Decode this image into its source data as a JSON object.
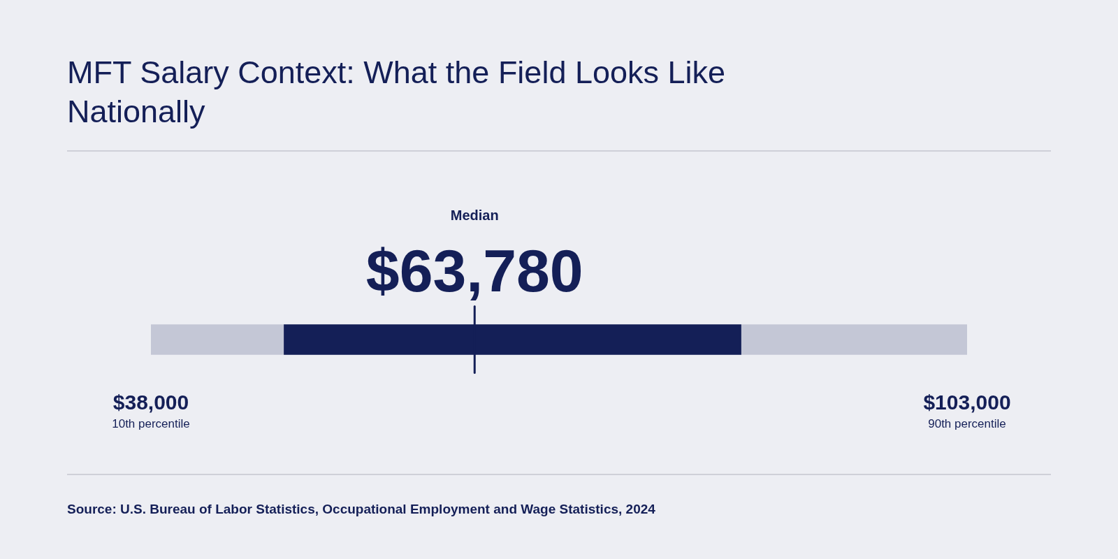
{
  "chart_data": {
    "type": "bar",
    "orientation": "horizontal",
    "title": "MFT Salary Context: What the Field Looks Like Nationally",
    "categories": [
      null
    ],
    "series": [
      {
        "color": "#c4c7d6",
        "values": [
          65000
        ],
        "base": [
          38000
        ]
      },
      {
        "color": "#141f57",
        "values": [
          36400
        ],
        "base": [
          48600
        ]
      }
    ],
    "xlim": [
      38000,
      103000
    ],
    "xticks": [
      {
        "value": 38000,
        "label": "$38,000"
      },
      {
        "value": 103000,
        "label": "$103,000"
      }
    ],
    "ref_lines": [
      {
        "axis": "x",
        "value": 63780,
        "label": "$63,780",
        "color": "#141f57"
      }
    ],
    "annotations": [
      "Median",
      "10th percentile",
      "90th percentile",
      "Source: U.S. Bureau of Labor Statistics, Occupational Employment and Wage Statistics, 2024"
    ],
    "grid": false
  }
}
